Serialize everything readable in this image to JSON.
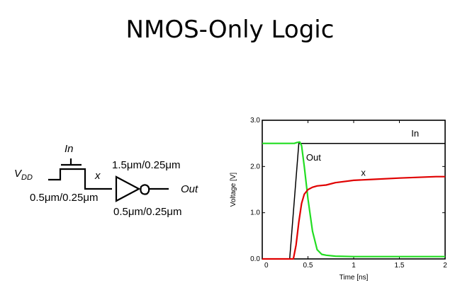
{
  "slide": {
    "title": "NMOS-Only Logic"
  },
  "circuit": {
    "vdd_label": "V",
    "vdd_sub": "DD",
    "in_label": "In",
    "x_label": "x",
    "out_label": "Out",
    "pass_size": "0.5μm/0.25μm",
    "pmos_size": "1.5μm/0.25μm",
    "nmos_size": "0.5μm/0.25μm"
  },
  "chart_data": {
    "type": "line",
    "title": "",
    "xlabel": "Time [ns]",
    "ylabel": "Voltage [V]",
    "xlim": [
      0,
      2
    ],
    "ylim": [
      0,
      3
    ],
    "xticks": [
      0,
      0.5,
      1,
      1.5,
      2
    ],
    "xtick_labels": [
      "0",
      "0.5",
      "1",
      "1.5",
      "2"
    ],
    "yticks": [
      0,
      1,
      2,
      3
    ],
    "ytick_labels": [
      "0.0",
      "1.0",
      "2.0",
      "3.0"
    ],
    "grid": false,
    "series": [
      {
        "name": "In",
        "color": "#000000",
        "x": [
          0,
          0.3,
          0.4,
          2
        ],
        "y": [
          0,
          0,
          2.5,
          2.5
        ]
      },
      {
        "name": "Out",
        "color": "#22dd22",
        "x": [
          0,
          0.35,
          0.38,
          0.41,
          0.43,
          0.46,
          0.5,
          0.55,
          0.6,
          0.65,
          0.7,
          0.8,
          1.0,
          2.0
        ],
        "y": [
          2.5,
          2.5,
          2.52,
          2.53,
          2.45,
          2.0,
          1.3,
          0.6,
          0.2,
          0.1,
          0.08,
          0.06,
          0.05,
          0.05
        ]
      },
      {
        "name": "x",
        "color": "#e00000",
        "x": [
          0,
          0.34,
          0.37,
          0.4,
          0.43,
          0.46,
          0.5,
          0.55,
          0.6,
          0.7,
          0.8,
          1.0,
          1.2,
          1.5,
          1.9,
          2.0
        ],
        "y": [
          0,
          0,
          0.3,
          0.8,
          1.2,
          1.4,
          1.5,
          1.55,
          1.58,
          1.6,
          1.65,
          1.7,
          1.72,
          1.75,
          1.78,
          1.78
        ]
      }
    ],
    "annotations": [
      {
        "text": "In",
        "x": 1.63,
        "y": 2.65
      },
      {
        "text": "Out",
        "x": 0.48,
        "y": 2.13
      },
      {
        "text": "x",
        "x": 1.08,
        "y": 1.8
      }
    ]
  }
}
